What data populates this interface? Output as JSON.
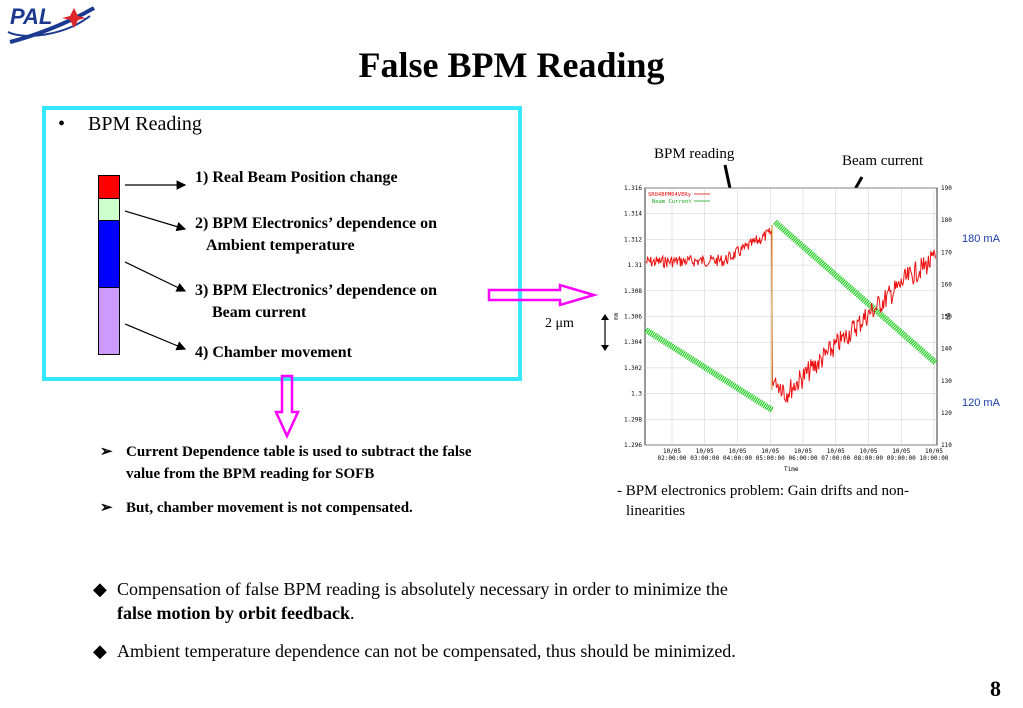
{
  "logo": {
    "text": "PAL"
  },
  "title": "False BPM Reading",
  "box": {
    "heading": "BPM Reading",
    "items": [
      {
        "line1": "1) Real Beam Position change",
        "line2": ""
      },
      {
        "line1": "2) BPM Electronics’ dependence on",
        "line2": "Ambient temperature"
      },
      {
        "line1": "3) BPM Electronics’ dependence on",
        "line2": "Beam current"
      },
      {
        "line1": "4) Chamber movement",
        "line2": ""
      }
    ],
    "colors": [
      "#ff0000",
      "#ccffcc",
      "#0000ff",
      "#cc99ff"
    ]
  },
  "subpoints": [
    {
      "line1": "Current Dependence table is used to subtract the false",
      "line2": "value from the BPM reading for SOFB"
    },
    {
      "line1": "But, chamber movement is not compensated.",
      "line2": ""
    }
  ],
  "plot": {
    "label_bpm": "BPM reading",
    "label_current": "Beam current",
    "scale_label": "2 μm",
    "label_180": "180 mA",
    "label_120": "120 mA",
    "legend1": "SR04BPM04VERy",
    "legend2": "Beam Current",
    "left_ticks": [
      "1.316",
      "1.314",
      "1.312",
      "1.31",
      "1.308",
      "1.306",
      "1.304",
      "1.302",
      "1.3",
      "1.298",
      "1.296"
    ],
    "right_ticks": [
      "190",
      "180",
      "170",
      "160",
      "150",
      "140",
      "130",
      "120",
      "110"
    ],
    "x_ticks": [
      [
        "10/05",
        "02:00:00"
      ],
      [
        "10/05",
        "03:00:00"
      ],
      [
        "10/05",
        "04:00:00"
      ],
      [
        "10/05",
        "05:00:00"
      ],
      [
        "10/05",
        "06:00:00"
      ],
      [
        "10/05",
        "07:00:00"
      ],
      [
        "10/05",
        "08:00:00"
      ],
      [
        "10/05",
        "09:00:00"
      ],
      [
        "10/05",
        "10:00:00"
      ]
    ],
    "x_label": "Time",
    "y_left_label": "mm",
    "y_right_label": "mA",
    "caption_line1": "- BPM electronics problem: Gain drifts and non-",
    "caption_line2": "linearities"
  },
  "bottom": [
    {
      "text": "Compensation of false BPM reading is absolutely necessary in order to minimize the",
      "bold": "false motion by orbit feedback",
      "tail": "."
    },
    {
      "text": "Ambient temperature dependence can not be compensated, thus should be minimized."
    }
  ],
  "page_number": "8"
}
